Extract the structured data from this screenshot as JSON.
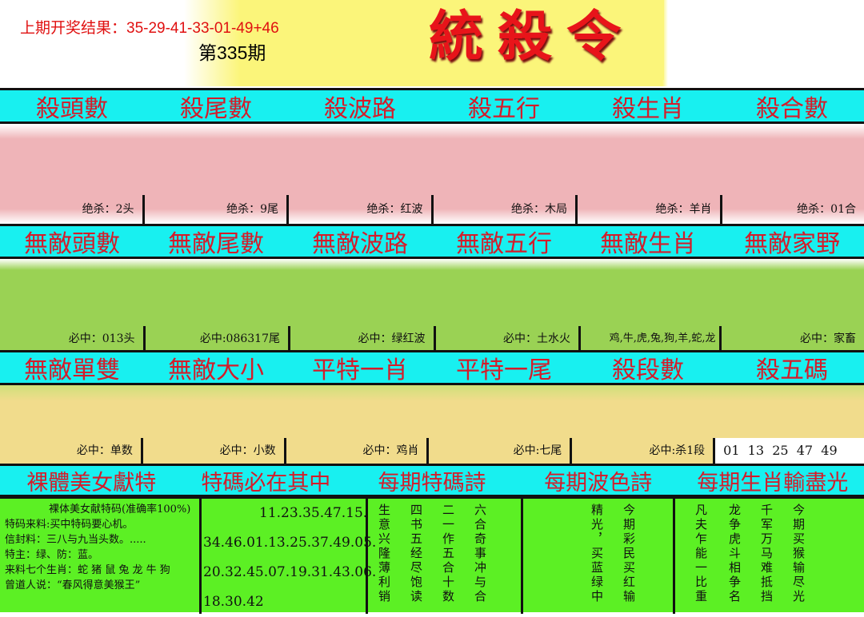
{
  "header": {
    "previous_result": "上期开奖结果：35-29-41-33-01-49+46",
    "issue": "第335期",
    "logo_text": "統殺令"
  },
  "band1": [
    "殺頭數",
    "殺尾數",
    "殺波路",
    "殺五行",
    "殺生肖",
    "殺合數"
  ],
  "row1": [
    "绝杀：2头",
    "绝杀：9尾",
    "绝杀：红波",
    "绝杀：木局",
    "绝杀：羊肖",
    "绝杀：01合"
  ],
  "band2": [
    "無敵頭數",
    "無敵尾數",
    "無敵波路",
    "無敵五行",
    "無敵生肖",
    "無敵家野"
  ],
  "row2": [
    "必中：013头",
    "必中:086317尾",
    "必中：绿红波",
    "必中：土水火",
    "鸡,牛,虎,兔,狗,羊,蛇,龙",
    "必中：家畜"
  ],
  "band3": [
    "無敵單雙",
    "無敵大小",
    "平特一肖",
    "平特一尾",
    "殺段數",
    "殺五碼"
  ],
  "row3": [
    "必中：单数",
    "必中：小数",
    "必中：鸡肖",
    "必中:七尾",
    "必中:杀1段",
    "01  13  25  47  49"
  ],
  "band4": [
    "裸體美女獻特",
    "特碼必在其中",
    "每期特碼詩",
    "每期波色詩",
    "每期生肖輸盡光"
  ],
  "bottom": {
    "info": [
      "裸体美女献特码(准确率100%)",
      "特码来料:买中特码要心机。",
      "信封料：三八与九当头数。.....",
      "特主：绿、防：蓝。",
      "来料七个生肖：蛇 猪 鼠 兔 龙 牛 狗",
      "曾道人说：“春风得意美猴王”"
    ],
    "numbers": [
      "11.23.35.47.15.",
      "34.46.01.13.25.37.49.05.",
      "20.32.45.07.19.31.43.06.",
      "18.30.42"
    ],
    "poem1": [
      "生意兴隆薄利销",
      "四书五经尽饱读",
      "二一作五合十数",
      "六合奇事冲与合"
    ],
    "poem2": [
      "精光，买蓝绿中",
      "今期彩民买红输"
    ],
    "poem3": [
      "凡夫乍能一比重",
      "龙争虎斗相争名",
      "千军万马难抵挡",
      "今期买猴输尽光"
    ]
  },
  "colors": {
    "band": "#18f0f0",
    "heading_red": "#d41c2a",
    "green": "#5cf024"
  }
}
